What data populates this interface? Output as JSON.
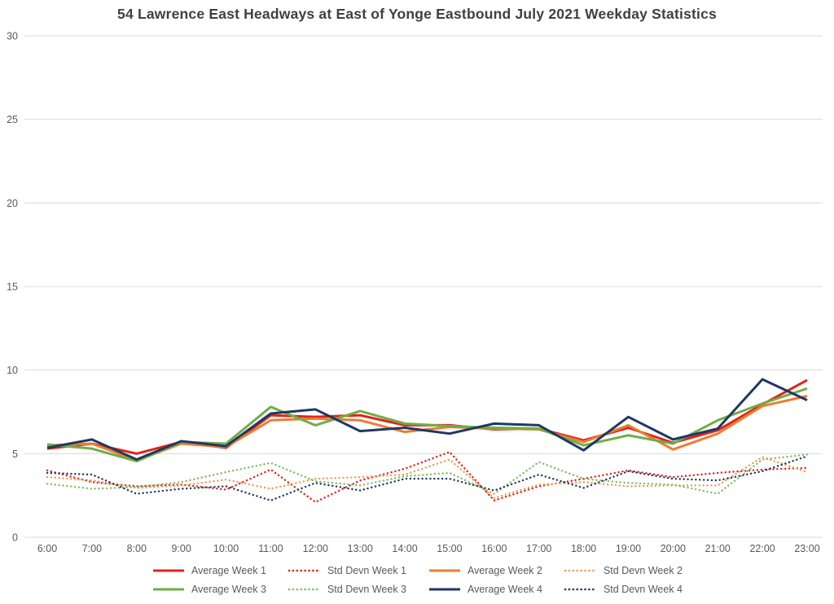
{
  "title": "54 Lawrence East Headways at East of Yonge Eastbound July 2021 Weekday Statistics",
  "colors": {
    "grid": "#d9d9d9",
    "axis_text": "#595959",
    "title_text": "#404040",
    "week1_red": "#e2231a",
    "week2_orange": "#ed7d31",
    "week2_orange_dotted": "#ef9d55",
    "week3_green": "#70ad47",
    "week3_green_dotted": "#85ba62",
    "week4_navy": "#1f3864"
  },
  "chart_data": {
    "type": "line",
    "title": "54 Lawrence East Headways at East of Yonge Eastbound July 2021 Weekday Statistics",
    "xlabel": "",
    "ylabel": "",
    "grid": true,
    "legend_position": "bottom",
    "categories": [
      "6:00",
      "7:00",
      "8:00",
      "9:00",
      "10:00",
      "11:00",
      "12:00",
      "13:00",
      "14:00",
      "15:00",
      "16:00",
      "17:00",
      "18:00",
      "19:00",
      "20:00",
      "21:00",
      "22:00",
      "23:00"
    ],
    "y_axis": {
      "min": 0,
      "max": 30,
      "tick_step": 5,
      "ticks": [
        0,
        5,
        10,
        15,
        20,
        25,
        30
      ]
    },
    "series": [
      {
        "name": "Average Week 1",
        "style": "solid",
        "color": "#e2231a",
        "values": [
          5.3,
          5.6,
          5.0,
          5.7,
          5.35,
          7.3,
          7.2,
          7.3,
          6.7,
          6.7,
          6.45,
          6.5,
          5.8,
          6.55,
          5.65,
          6.4,
          7.95,
          9.4
        ]
      },
      {
        "name": "Std Devn Week 1",
        "style": "dotted",
        "color": "#e2231a",
        "values": [
          4.0,
          3.3,
          3.05,
          3.15,
          2.85,
          4.05,
          2.1,
          3.4,
          4.1,
          5.1,
          2.2,
          3.05,
          3.5,
          4.0,
          3.6,
          3.85,
          4.05,
          4.15
        ]
      },
      {
        "name": "Average Week 2",
        "style": "solid",
        "color": "#ed7d31",
        "values": [
          5.5,
          5.6,
          4.6,
          5.6,
          5.4,
          7.0,
          7.1,
          7.0,
          6.3,
          6.6,
          6.5,
          6.45,
          5.7,
          6.7,
          5.25,
          6.2,
          7.85,
          8.45
        ]
      },
      {
        "name": "Std Devn Week 2",
        "style": "dotted",
        "color": "#ef9d55",
        "values": [
          3.6,
          3.4,
          2.95,
          3.1,
          3.45,
          2.9,
          3.5,
          3.6,
          3.75,
          4.65,
          2.35,
          3.15,
          3.3,
          3.05,
          3.1,
          3.1,
          4.8,
          3.9
        ]
      },
      {
        "name": "Average Week 3",
        "style": "solid",
        "color": "#70ad47",
        "values": [
          5.55,
          5.3,
          4.55,
          5.7,
          5.6,
          7.8,
          6.7,
          7.55,
          6.8,
          6.65,
          6.55,
          6.5,
          5.5,
          6.1,
          5.6,
          7.0,
          8.0,
          8.9
        ]
      },
      {
        "name": "Std Devn Week 3",
        "style": "dotted",
        "color": "#85ba62",
        "values": [
          3.2,
          2.9,
          3.0,
          3.3,
          3.9,
          4.45,
          3.35,
          3.1,
          3.65,
          3.85,
          2.6,
          4.5,
          3.5,
          3.25,
          3.15,
          2.6,
          4.65,
          4.95
        ]
      },
      {
        "name": "Average Week 4",
        "style": "solid",
        "color": "#1f3864",
        "values": [
          5.35,
          5.85,
          4.65,
          5.75,
          5.45,
          7.4,
          7.65,
          6.35,
          6.55,
          6.2,
          6.8,
          6.7,
          5.2,
          7.2,
          5.85,
          6.5,
          9.45,
          8.2
        ]
      },
      {
        "name": "Std Devn Week 4",
        "style": "dotted",
        "color": "#1f3864",
        "values": [
          3.85,
          3.75,
          2.6,
          2.9,
          3.05,
          2.2,
          3.25,
          2.8,
          3.5,
          3.5,
          2.8,
          3.75,
          2.95,
          3.95,
          3.5,
          3.4,
          3.95,
          4.85
        ]
      }
    ]
  }
}
